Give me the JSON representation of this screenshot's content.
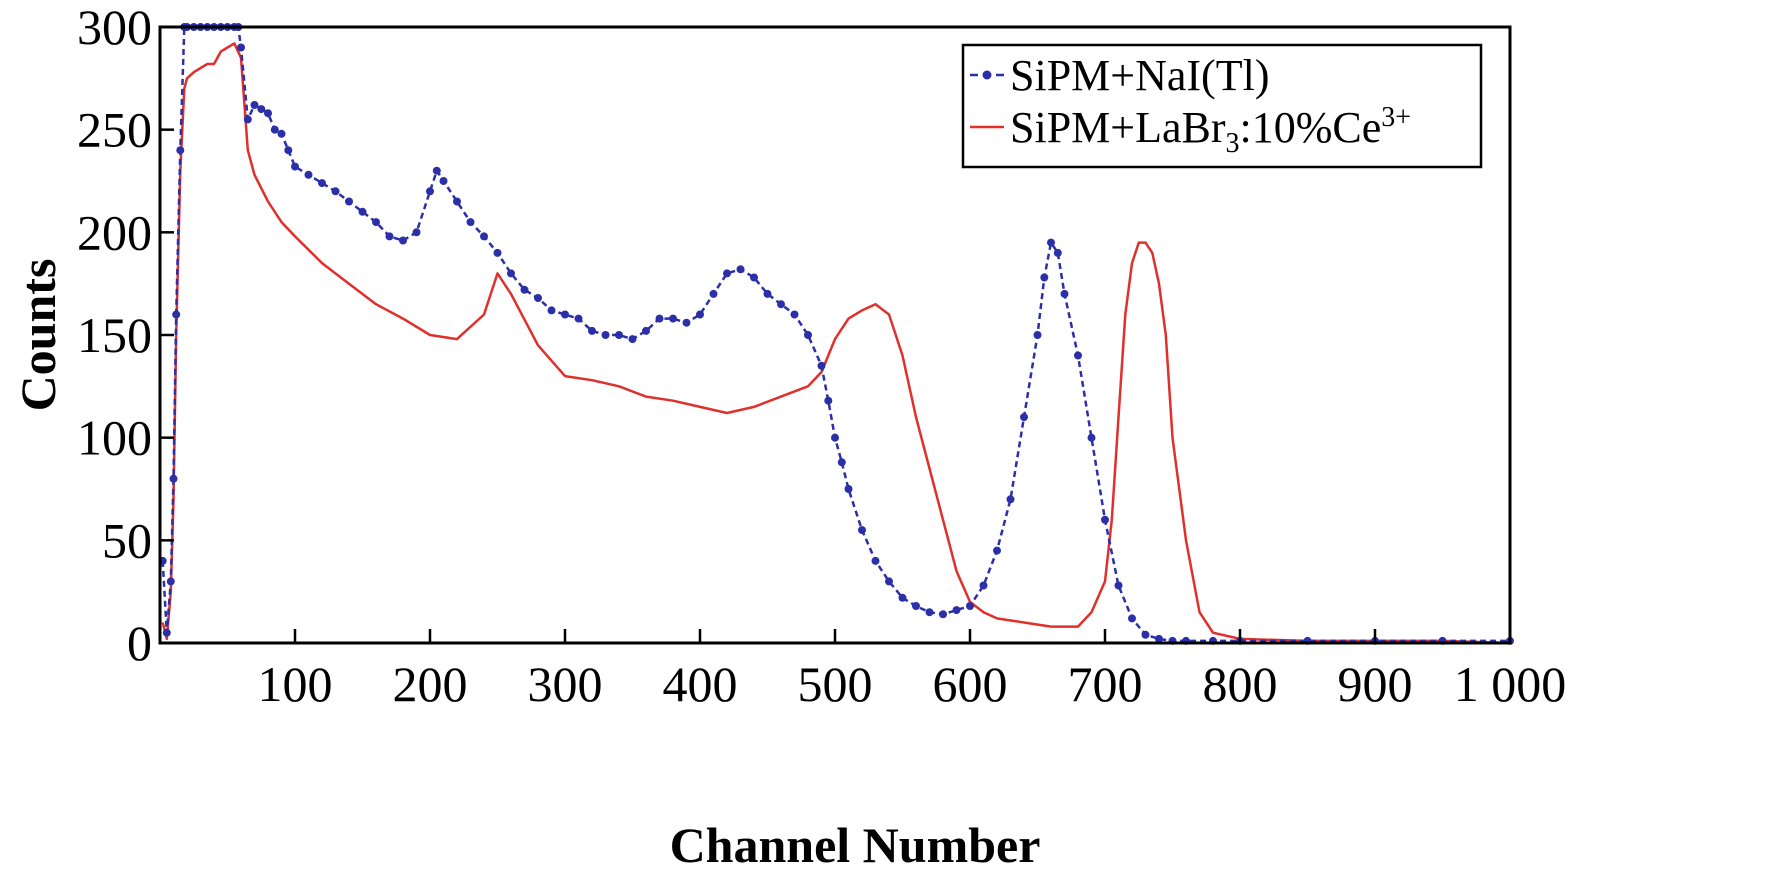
{
  "chart_data": {
    "type": "line",
    "title": "",
    "xlabel": "Channel Number",
    "ylabel": "Counts",
    "xlim": [
      0,
      1000
    ],
    "ylim": [
      0,
      300
    ],
    "x_ticks": [
      100,
      200,
      300,
      400,
      500,
      600,
      700,
      800,
      900,
      1000
    ],
    "x_tick_labels": [
      "100",
      "200",
      "300",
      "400",
      "500",
      "600",
      "700",
      "800",
      "900",
      "1 000"
    ],
    "y_ticks": [
      0,
      50,
      100,
      150,
      200,
      250,
      300
    ],
    "y_tick_labels": [
      "0",
      "50",
      "100",
      "150",
      "200",
      "250",
      "300"
    ],
    "grid": false,
    "legend_position": "top-right",
    "series": [
      {
        "name": "SiPM+NaI(Tl)",
        "legend_main": "SiPM+NaI(Tl)",
        "color": "#2b2fa8",
        "style": "dashed-with-markers",
        "x": [
          2,
          5,
          8,
          10,
          12,
          15,
          18,
          20,
          25,
          30,
          35,
          40,
          45,
          50,
          55,
          58,
          60,
          65,
          70,
          75,
          80,
          85,
          90,
          95,
          100,
          110,
          120,
          130,
          140,
          150,
          160,
          170,
          180,
          190,
          200,
          205,
          210,
          220,
          230,
          240,
          250,
          260,
          270,
          280,
          290,
          300,
          310,
          320,
          330,
          340,
          350,
          360,
          370,
          380,
          390,
          400,
          410,
          420,
          430,
          440,
          450,
          460,
          470,
          480,
          490,
          495,
          500,
          505,
          510,
          520,
          530,
          540,
          550,
          560,
          570,
          580,
          590,
          600,
          610,
          620,
          630,
          640,
          650,
          655,
          660,
          665,
          670,
          680,
          690,
          700,
          710,
          720,
          730,
          740,
          750,
          760,
          780,
          800,
          850,
          900,
          950,
          1000
        ],
        "y": [
          40,
          5,
          30,
          80,
          160,
          240,
          300,
          300,
          300,
          300,
          300,
          300,
          300,
          300,
          300,
          300,
          290,
          255,
          262,
          260,
          258,
          250,
          248,
          240,
          232,
          228,
          224,
          220,
          215,
          210,
          205,
          198,
          196,
          200,
          220,
          230,
          225,
          215,
          205,
          198,
          190,
          180,
          172,
          168,
          162,
          160,
          158,
          152,
          150,
          150,
          148,
          152,
          158,
          158,
          156,
          160,
          170,
          180,
          182,
          178,
          170,
          165,
          160,
          150,
          135,
          118,
          100,
          88,
          75,
          55,
          40,
          30,
          22,
          18,
          15,
          14,
          16,
          18,
          28,
          45,
          70,
          110,
          150,
          178,
          195,
          190,
          170,
          140,
          100,
          60,
          28,
          12,
          4,
          2,
          1,
          1,
          1,
          1,
          1,
          1,
          1,
          1
        ]
      },
      {
        "name": "SiPM+LaBr3:10%Ce3+",
        "legend_main": "SiPM+LaBr",
        "legend_sub": "3",
        "legend_rest": ":10%Ce",
        "legend_sup": "3+",
        "color": "#e0302c",
        "style": "solid",
        "x": [
          2,
          5,
          8,
          10,
          12,
          15,
          18,
          20,
          25,
          30,
          35,
          40,
          45,
          50,
          55,
          60,
          65,
          70,
          80,
          90,
          100,
          120,
          140,
          160,
          180,
          200,
          220,
          240,
          250,
          260,
          280,
          300,
          320,
          340,
          360,
          380,
          400,
          420,
          440,
          460,
          480,
          490,
          500,
          510,
          520,
          530,
          540,
          550,
          560,
          570,
          580,
          590,
          600,
          610,
          620,
          640,
          660,
          680,
          690,
          700,
          705,
          710,
          715,
          720,
          725,
          730,
          735,
          740,
          745,
          750,
          760,
          770,
          780,
          800,
          850,
          900,
          950,
          1000
        ],
        "y": [
          10,
          2,
          25,
          70,
          150,
          230,
          270,
          275,
          278,
          280,
          282,
          282,
          288,
          290,
          292,
          285,
          240,
          228,
          215,
          205,
          198,
          185,
          175,
          165,
          158,
          150,
          148,
          160,
          180,
          170,
          145,
          130,
          128,
          125,
          120,
          118,
          115,
          112,
          115,
          120,
          125,
          132,
          148,
          158,
          162,
          165,
          160,
          140,
          110,
          85,
          60,
          35,
          20,
          15,
          12,
          10,
          8,
          8,
          15,
          30,
          60,
          110,
          160,
          185,
          195,
          195,
          190,
          175,
          150,
          100,
          50,
          15,
          5,
          2,
          1,
          1,
          1,
          0
        ]
      }
    ]
  }
}
